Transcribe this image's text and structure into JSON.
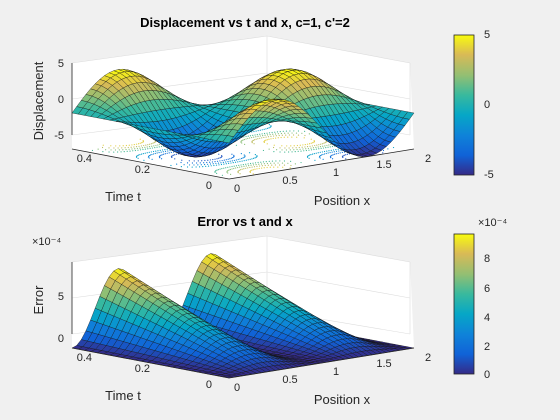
{
  "chart_data": [
    {
      "type": "surface3d",
      "title": "Displacement vs t and x, c=1, c'=2",
      "xlabel": "Position x",
      "ylabel": "Time t",
      "zlabel": "Displacement",
      "xlim": [
        0,
        2
      ],
      "ylim": [
        0,
        0.5
      ],
      "zlim": [
        -5,
        5
      ],
      "xticks": [
        "0",
        "0.5",
        "1",
        "1.5",
        "2"
      ],
      "yticks": [
        "0",
        "0.2",
        "0.4"
      ],
      "zticks": [
        "-5",
        "0",
        "5"
      ],
      "grid": true,
      "contour_on_floor": true,
      "surface": {
        "x_start": 0,
        "x_end": 2,
        "x_steps": 40,
        "t_start": 0,
        "t_end": 0.5,
        "t_steps": 25,
        "formula": "5*sin(pi*x)*cos(4*pi*t)"
      },
      "colorbar": {
        "limits": [
          -5,
          5
        ],
        "ticks": [
          "5",
          "0",
          "-5"
        ],
        "colormap": "parula"
      }
    },
    {
      "type": "surface3d",
      "title": "Error vs t and x",
      "xlabel": "Position x",
      "ylabel": "Time t",
      "zlabel": "Error",
      "exponent_label": "×10⁻⁴",
      "xlim": [
        0,
        2
      ],
      "ylim": [
        0,
        0.5
      ],
      "zlim": [
        0,
        0.00095
      ],
      "xticks": [
        "0",
        "0.5",
        "1",
        "1.5",
        "2"
      ],
      "yticks": [
        "0",
        "0.2",
        "0.4"
      ],
      "zticks": [
        "0",
        "5"
      ],
      "grid": true,
      "surface": {
        "x_start": 0,
        "x_end": 2,
        "x_steps": 40,
        "t_start": 0,
        "t_end": 0.5,
        "t_steps": 25,
        "formula": "0.00095*(sin(pi*x))^2*(2*t)"
      },
      "colorbar": {
        "limits": [
          0,
          0.00095
        ],
        "ticks": [
          "8",
          "6",
          "4",
          "2",
          "0"
        ],
        "exponent_label": "×10⁻⁴",
        "colormap": "parula"
      }
    }
  ]
}
